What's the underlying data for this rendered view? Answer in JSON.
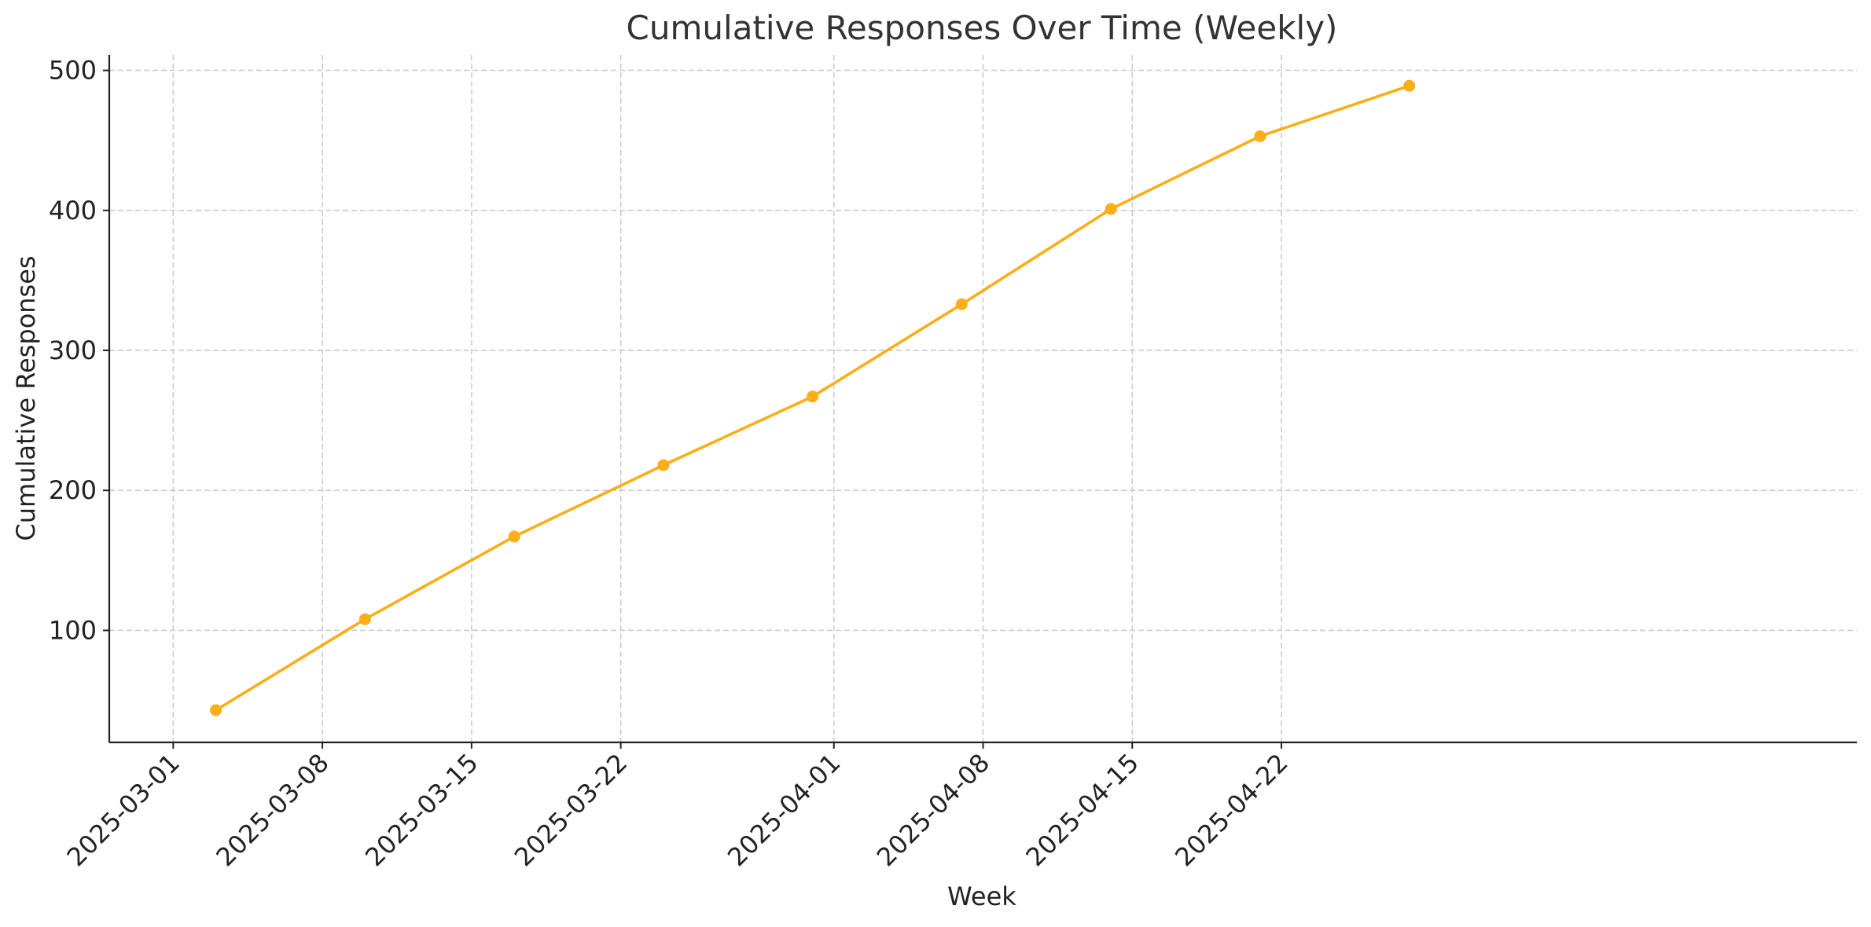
{
  "chart_data": {
    "type": "line",
    "title": "Cumulative Responses Over Time (Weekly)",
    "xlabel": "Week",
    "ylabel": "Cumulative Responses",
    "x_scale": "date",
    "xlim": [
      "2025-02-26",
      "2025-05-19"
    ],
    "ylim": [
      20,
      511
    ],
    "x_ticks": [
      "2025-03-01",
      "2025-03-08",
      "2025-03-15",
      "2025-03-22",
      "2025-04-01",
      "2025-04-08",
      "2025-04-15",
      "2025-04-22"
    ],
    "y_ticks": [
      100,
      200,
      300,
      400,
      500
    ],
    "grid": true,
    "legend": "none",
    "series": [
      {
        "color": "#FBAE17",
        "marker": "circle",
        "x": [
          "2025-03-03",
          "2025-03-10",
          "2025-03-17",
          "2025-03-24",
          "2025-03-31",
          "2025-04-07",
          "2025-04-14",
          "2025-04-21",
          "2025-04-28"
        ],
        "y": [
          43,
          108,
          167,
          218,
          267,
          333,
          401,
          453,
          489
        ]
      }
    ]
  }
}
